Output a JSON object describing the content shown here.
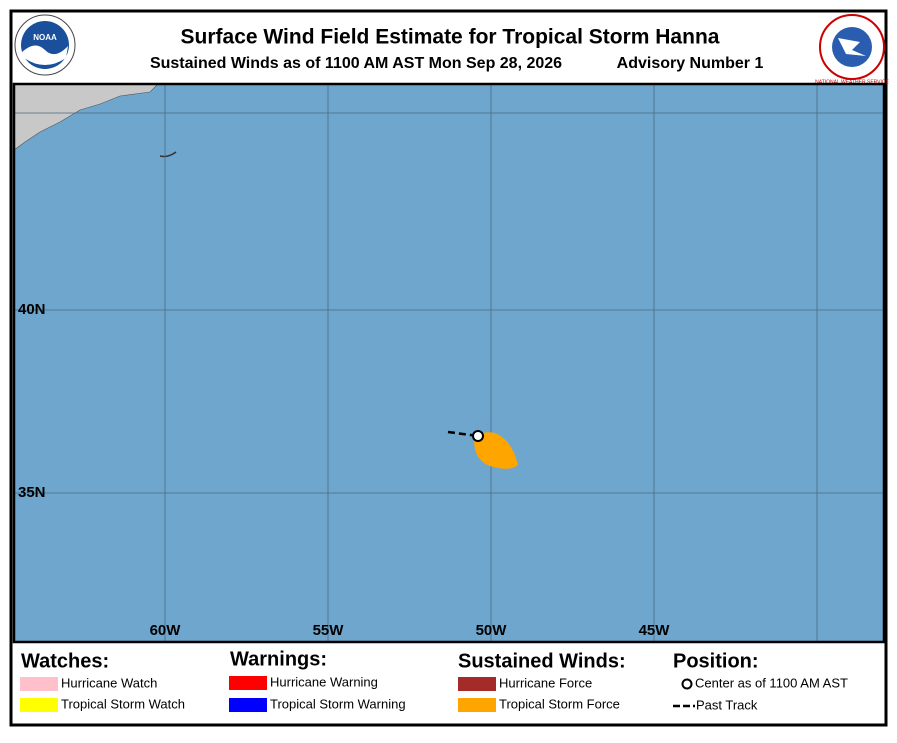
{
  "header": {
    "title": "Surface Wind Field Estimate for Tropical Storm Hanna",
    "subtitle": "Sustained Winds as of 1100 AM AST Mon Sep 28, 2026",
    "advisory": "Advisory Number 1",
    "left_logo": "NOAA",
    "right_logo": "NATIONAL WEATHER SERVICE"
  },
  "map": {
    "lon_labels": [
      "60W",
      "55W",
      "50W",
      "45W"
    ],
    "lat_labels": [
      "40N",
      "35N"
    ]
  },
  "legend": {
    "watches": {
      "title": "Watches:",
      "items": [
        "Hurricane Watch",
        "Tropical Storm Watch"
      ]
    },
    "warnings": {
      "title": "Warnings:",
      "items": [
        "Hurricane Warning",
        "Tropical Storm Warning"
      ]
    },
    "winds": {
      "title": "Sustained Winds:",
      "items": [
        "Hurricane Force",
        "Tropical Storm Force"
      ]
    },
    "position": {
      "title": "Position:",
      "items": [
        "Center as of 1100 AM AST",
        "Past Track"
      ]
    }
  }
}
